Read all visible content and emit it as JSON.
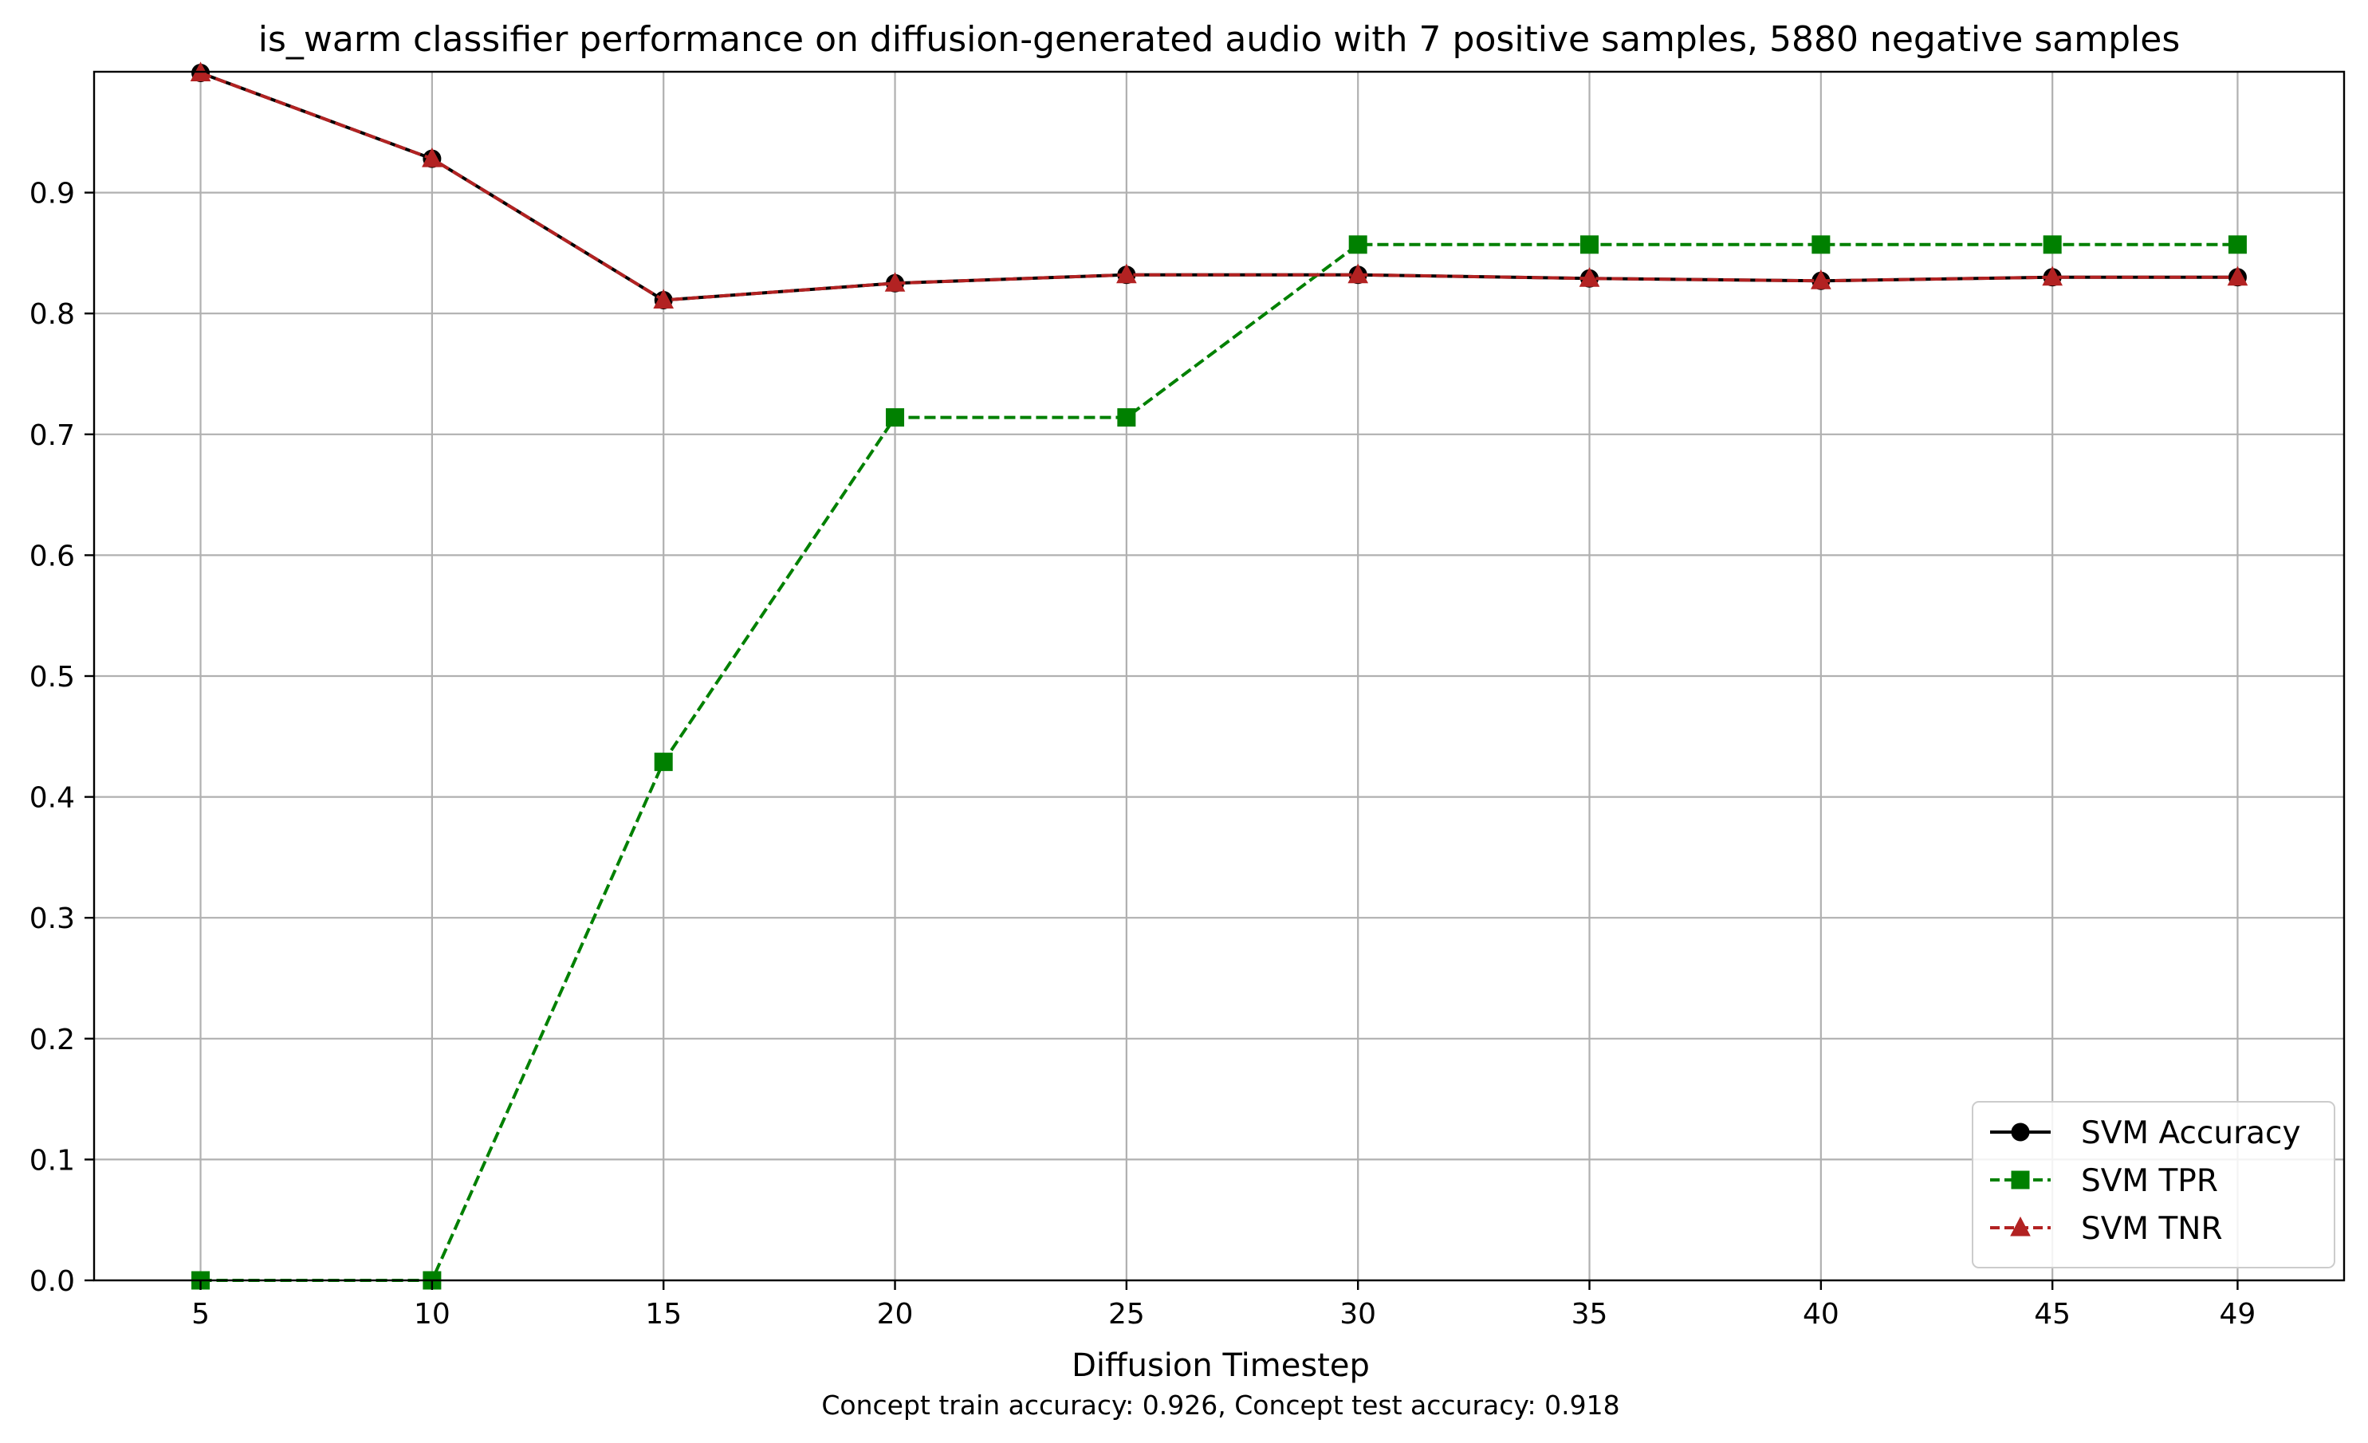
{
  "chart_data": {
    "type": "line",
    "title": "is_warm classifier performance on diffusion-generated audio with 7 positive samples, 5880 negative samples",
    "xlabel": "Diffusion Timestep",
    "footnote": "Concept train accuracy: 0.926, Concept test accuracy: 0.918",
    "ylabel": "",
    "x": [
      5,
      10,
      15,
      20,
      25,
      30,
      35,
      40,
      45,
      49
    ],
    "x_tick_labels": [
      "5",
      "10",
      "15",
      "20",
      "25",
      "30",
      "35",
      "40",
      "45",
      "49"
    ],
    "y_tick_labels": [
      "0.0",
      "0.1",
      "0.2",
      "0.3",
      "0.4",
      "0.5",
      "0.6",
      "0.7",
      "0.8",
      "0.9"
    ],
    "y_ticks": [
      0.0,
      0.1,
      0.2,
      0.3,
      0.4,
      0.5,
      0.6,
      0.7,
      0.8,
      0.9
    ],
    "xlim": [
      2.7,
      51.3
    ],
    "ylim": [
      0.0,
      1.0
    ],
    "grid": true,
    "legend_position": "bottom-right",
    "series": [
      {
        "name": "SVM Accuracy",
        "values": [
          0.999,
          0.928,
          0.811,
          0.825,
          0.832,
          0.832,
          0.829,
          0.827,
          0.83,
          0.83
        ],
        "color": "#000000",
        "linestyle": "solid",
        "marker": "circle"
      },
      {
        "name": "SVM TPR",
        "values": [
          0.0,
          0.0,
          0.429,
          0.714,
          0.714,
          0.857,
          0.857,
          0.857,
          0.857,
          0.857
        ],
        "color": "#008000",
        "linestyle": "dashed",
        "marker": "square"
      },
      {
        "name": "SVM TNR",
        "values": [
          0.999,
          0.928,
          0.811,
          0.825,
          0.832,
          0.832,
          0.829,
          0.827,
          0.83,
          0.83
        ],
        "color": "#b22222",
        "linestyle": "dashed",
        "marker": "triangle"
      }
    ]
  }
}
